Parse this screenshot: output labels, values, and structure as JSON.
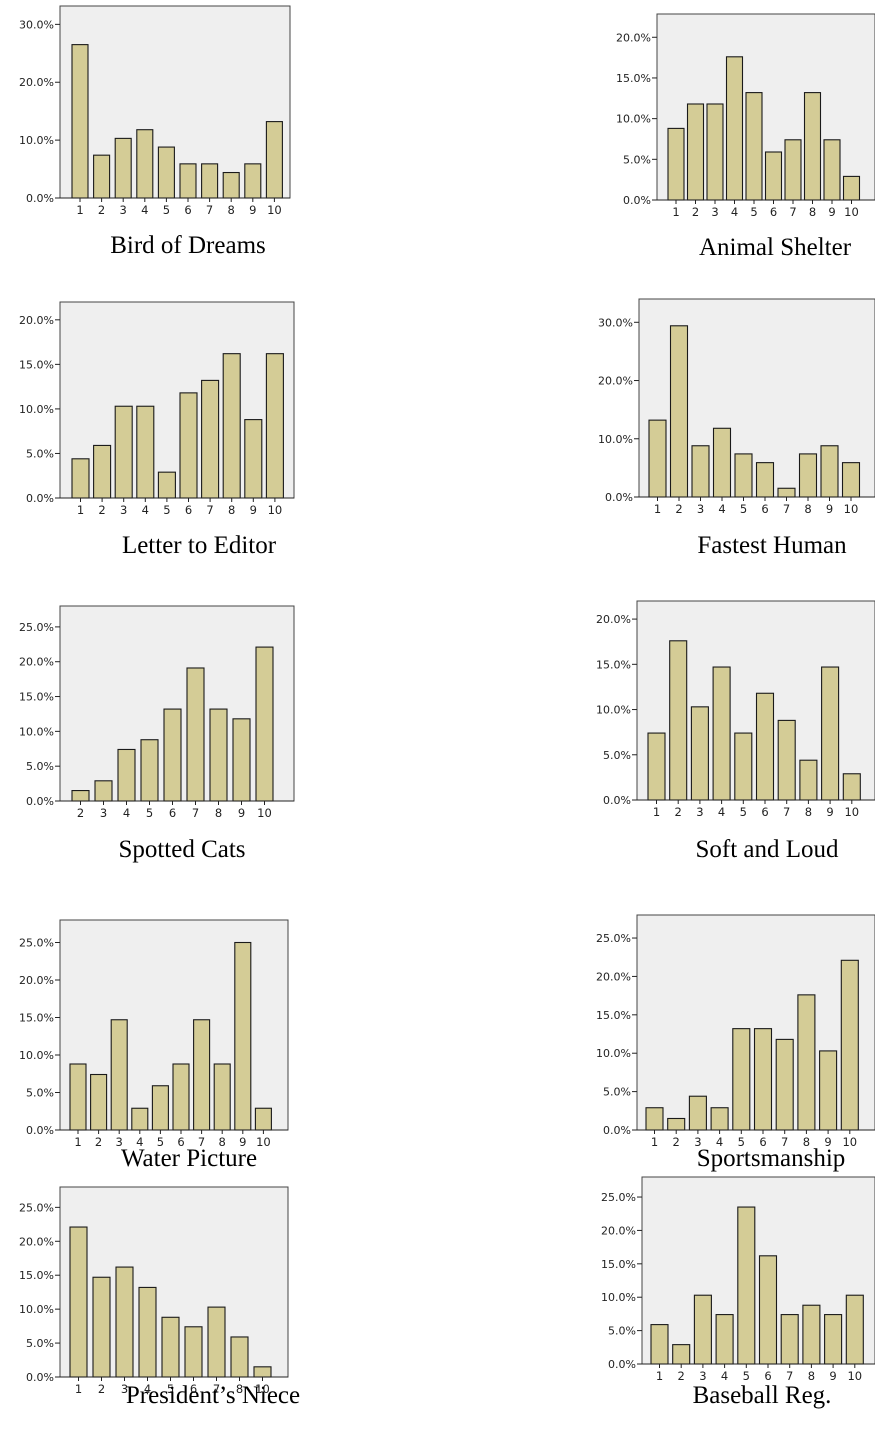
{
  "chart_data": [
    {
      "type": "bar",
      "title": "Bird of Dreams",
      "categories": [
        "1",
        "2",
        "3",
        "4",
        "5",
        "6",
        "7",
        "8",
        "9",
        "10"
      ],
      "values": [
        26.5,
        7.4,
        10.3,
        11.8,
        8.8,
        5.9,
        5.9,
        4.4,
        5.9,
        13.2
      ],
      "yticks": [
        "0.0%",
        "10.0%",
        "20.0%",
        "30.0%"
      ],
      "ylim": [
        0,
        33
      ],
      "grid": false
    },
    {
      "type": "bar",
      "title": "Animal Shelter",
      "categories": [
        "1",
        "2",
        "3",
        "4",
        "5",
        "6",
        "7",
        "8",
        "9",
        "10"
      ],
      "values": [
        8.8,
        11.8,
        11.8,
        17.6,
        13.2,
        5.9,
        7.4,
        13.2,
        7.4,
        2.9
      ],
      "yticks": [
        "0.0%",
        "5.0%",
        "10.0%",
        "15.0%",
        "20.0%"
      ],
      "ylim": [
        0,
        22
      ],
      "grid": false
    },
    {
      "type": "bar",
      "title": "Letter to Editor",
      "categories": [
        "1",
        "2",
        "3",
        "4",
        "5",
        "6",
        "7",
        "8",
        "9",
        "10"
      ],
      "values": [
        4.4,
        5.9,
        10.3,
        10.3,
        2.9,
        11.8,
        13.2,
        16.2,
        8.8,
        16.2
      ],
      "yticks": [
        "0.0%",
        "5.0%",
        "10.0%",
        "15.0%",
        "20.0%"
      ],
      "ylim": [
        0,
        22
      ],
      "grid": false
    },
    {
      "type": "bar",
      "title": "Fastest Human",
      "categories": [
        "1",
        "2",
        "3",
        "4",
        "5",
        "6",
        "7",
        "8",
        "9",
        "10"
      ],
      "values": [
        13.2,
        29.4,
        8.8,
        11.8,
        7.4,
        5.9,
        1.5,
        7.4,
        8.8,
        5.9
      ],
      "yticks": [
        "0.0%",
        "10.0%",
        "20.0%",
        "30.0%"
      ],
      "ylim": [
        0,
        34
      ],
      "grid": false
    },
    {
      "type": "bar",
      "title": "Spotted Cats",
      "categories": [
        "2",
        "3",
        "4",
        "5",
        "6",
        "7",
        "8",
        "9",
        "10"
      ],
      "values": [
        1.5,
        2.9,
        7.4,
        8.8,
        13.2,
        19.1,
        13.2,
        11.8,
        22.1
      ],
      "yticks": [
        "0.0%",
        "5.0%",
        "10.0%",
        "15.0%",
        "20.0%",
        "25.0%"
      ],
      "ylim": [
        0,
        28
      ],
      "grid": false
    },
    {
      "type": "bar",
      "title": "Soft and Loud",
      "categories": [
        "1",
        "2",
        "3",
        "4",
        "5",
        "6",
        "7",
        "8",
        "9",
        "10"
      ],
      "values": [
        7.4,
        17.6,
        10.3,
        14.7,
        7.4,
        11.8,
        8.8,
        4.4,
        14.7,
        2.9
      ],
      "yticks": [
        "0.0%",
        "5.0%",
        "10.0%",
        "15.0%",
        "20.0%"
      ],
      "ylim": [
        0,
        22
      ],
      "grid": false
    },
    {
      "type": "bar",
      "title": "Water Picture",
      "categories": [
        "1",
        "2",
        "3",
        "4",
        "5",
        "6",
        "7",
        "8",
        "9",
        "10"
      ],
      "values": [
        8.8,
        7.4,
        14.7,
        2.9,
        5.9,
        8.8,
        14.7,
        8.8,
        25.0,
        2.9
      ],
      "yticks": [
        "0.0%",
        "5.0%",
        "10.0%",
        "15.0%",
        "20.0%",
        "25.0%"
      ],
      "ylim": [
        0,
        28
      ],
      "grid": false
    },
    {
      "type": "bar",
      "title": "Sportsmanship",
      "categories": [
        "1",
        "2",
        "3",
        "4",
        "5",
        "6",
        "7",
        "8",
        "9",
        "10"
      ],
      "values": [
        2.9,
        1.5,
        4.4,
        2.9,
        13.2,
        13.2,
        11.8,
        17.6,
        10.3,
        22.1
      ],
      "yticks": [
        "0.0%",
        "5.0%",
        "10.0%",
        "15.0%",
        "20.0%",
        "25.0%"
      ],
      "ylim": [
        0,
        28
      ],
      "grid": false
    },
    {
      "type": "bar",
      "title": "President’s Niece",
      "categories": [
        "1",
        "2",
        "3",
        "4",
        "5",
        "6",
        "7",
        "8",
        "10"
      ],
      "values": [
        22.1,
        14.7,
        16.2,
        13.2,
        8.8,
        7.4,
        10.3,
        5.9,
        1.5
      ],
      "yticks": [
        "0.0%",
        "5.0%",
        "10.0%",
        "15.0%",
        "20.0%",
        "25.0%"
      ],
      "ylim": [
        0,
        28
      ],
      "grid": false
    },
    {
      "type": "bar",
      "title": "Baseball Reg.",
      "categories": [
        "1",
        "2",
        "3",
        "4",
        "5",
        "6",
        "7",
        "8",
        "9",
        "10"
      ],
      "values": [
        5.9,
        2.9,
        10.3,
        7.4,
        23.5,
        16.2,
        7.4,
        8.8,
        7.4,
        10.3
      ],
      "yticks": [
        "0.0%",
        "5.0%",
        "10.0%",
        "15.0%",
        "20.0%",
        "25.0%"
      ],
      "ylim": [
        0,
        28
      ],
      "grid": false
    }
  ]
}
